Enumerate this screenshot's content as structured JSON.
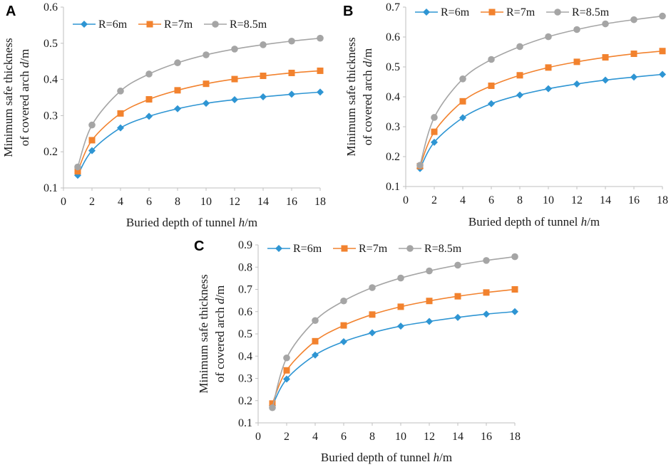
{
  "colors": {
    "s1": "#2E95D3",
    "s2": "#F2822E",
    "s3": "#A5A5A5"
  },
  "chart_data": [
    {
      "panel": "A",
      "type": "line",
      "title": "",
      "xlabel": "Buried depth of tunnel ",
      "xlabel_var": "h",
      "xlabel_unit": "/m",
      "ylabel_line1": "Minimum safe thickness",
      "ylabel_line2": "of covered arch ",
      "ylabel_var": "d",
      "ylabel_unit": "/m",
      "x": [
        1,
        2,
        4,
        6,
        8,
        10,
        12,
        14,
        16,
        18
      ],
      "xlim": [
        0,
        18
      ],
      "xticks": [
        0,
        2,
        4,
        6,
        8,
        10,
        12,
        14,
        16,
        18
      ],
      "ylim": [
        0.1,
        0.6
      ],
      "yticks": [
        "0.1",
        "0.2",
        "0.3",
        "0.4",
        "0.5",
        "0.6"
      ],
      "legend": "top",
      "series": [
        {
          "name": "R=6m",
          "marker": "diamond",
          "values": [
            0.135,
            0.203,
            0.266,
            0.298,
            0.319,
            0.334,
            0.344,
            0.352,
            0.359,
            0.365
          ]
        },
        {
          "name": "R=7m",
          "marker": "square",
          "values": [
            0.146,
            0.232,
            0.306,
            0.345,
            0.37,
            0.388,
            0.401,
            0.41,
            0.418,
            0.424
          ]
        },
        {
          "name": "R=8.5m",
          "marker": "circle",
          "values": [
            0.158,
            0.274,
            0.368,
            0.415,
            0.446,
            0.468,
            0.484,
            0.496,
            0.506,
            0.514
          ]
        }
      ]
    },
    {
      "panel": "B",
      "type": "line",
      "title": "",
      "xlabel": "Buried depth of tunnel ",
      "xlabel_var": "h",
      "xlabel_unit": "/m",
      "ylabel_line1": "Minimum safe thickness",
      "ylabel_line2": "of covered arch ",
      "ylabel_var": "d",
      "ylabel_unit": "/m",
      "x": [
        1,
        2,
        4,
        6,
        8,
        10,
        12,
        14,
        16,
        18
      ],
      "xlim": [
        0,
        18
      ],
      "xticks": [
        0,
        2,
        4,
        6,
        8,
        10,
        12,
        14,
        16,
        18
      ],
      "ylim": [
        0.1,
        0.7
      ],
      "yticks": [
        "0.1",
        "0.2",
        "0.3",
        "0.4",
        "0.5",
        "0.6",
        "0.7"
      ],
      "legend": "top",
      "series": [
        {
          "name": "R=6m",
          "marker": "diamond",
          "values": [
            0.16,
            0.248,
            0.33,
            0.377,
            0.406,
            0.427,
            0.443,
            0.456,
            0.466,
            0.475
          ]
        },
        {
          "name": "R=7m",
          "marker": "square",
          "values": [
            0.168,
            0.283,
            0.385,
            0.437,
            0.472,
            0.498,
            0.517,
            0.532,
            0.544,
            0.553
          ]
        },
        {
          "name": "R=8.5m",
          "marker": "circle",
          "values": [
            0.171,
            0.331,
            0.46,
            0.525,
            0.568,
            0.601,
            0.625,
            0.644,
            0.658,
            0.67
          ]
        }
      ]
    },
    {
      "panel": "C",
      "type": "line",
      "title": "",
      "xlabel": "Buried depth of tunnel ",
      "xlabel_var": "h",
      "xlabel_unit": "/m",
      "ylabel_line1": "Minimum safe thickness",
      "ylabel_line2": "of covered arch ",
      "ylabel_var": "d",
      "ylabel_unit": "/m",
      "x": [
        1,
        2,
        4,
        6,
        8,
        10,
        12,
        14,
        16,
        18
      ],
      "xlim": [
        0,
        18
      ],
      "xticks": [
        0,
        2,
        4,
        6,
        8,
        10,
        12,
        14,
        16,
        18
      ],
      "ylim": [
        0.1,
        0.9
      ],
      "yticks": [
        "0.1",
        "0.2",
        "0.3",
        "0.4",
        "0.5",
        "0.6",
        "0.7",
        "0.8",
        "0.9"
      ],
      "legend": "top",
      "series": [
        {
          "name": "R=6m",
          "marker": "diamond",
          "values": [
            0.178,
            0.297,
            0.405,
            0.465,
            0.505,
            0.535,
            0.556,
            0.574,
            0.589,
            0.6
          ]
        },
        {
          "name": "R=7m",
          "marker": "square",
          "values": [
            0.187,
            0.336,
            0.467,
            0.538,
            0.587,
            0.622,
            0.648,
            0.669,
            0.686,
            0.7
          ]
        },
        {
          "name": "R=8.5m",
          "marker": "circle",
          "values": [
            0.168,
            0.392,
            0.56,
            0.648,
            0.708,
            0.751,
            0.783,
            0.809,
            0.83,
            0.847
          ]
        }
      ]
    }
  ]
}
